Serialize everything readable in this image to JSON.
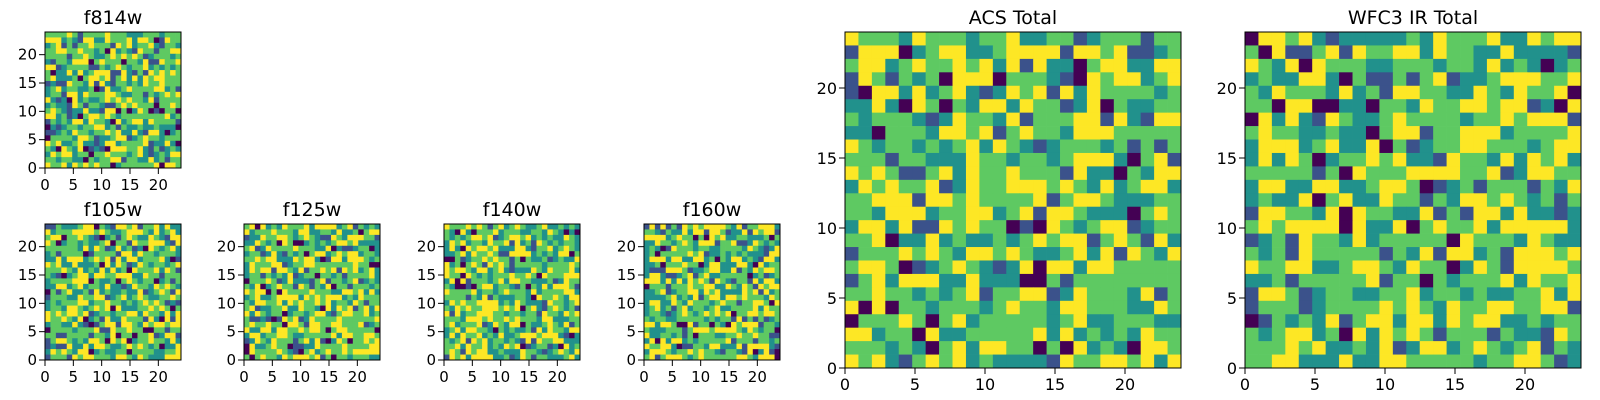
{
  "figure": {
    "colors": [
      "#440154",
      "#3b528b",
      "#21918c",
      "#5ec962",
      "#fde725"
    ]
  },
  "chart_data": [
    {
      "id": "f814w",
      "type": "heatmap",
      "title": "f814w",
      "grid_size": 25,
      "xlim": [
        0,
        24
      ],
      "ylim": [
        0,
        24
      ],
      "x_ticks": [
        "0",
        "5",
        "10",
        "15",
        "20"
      ],
      "y_ticks": [
        "0",
        "5",
        "10",
        "15",
        "20"
      ],
      "colormap": "viridis",
      "data_seed": 11
    },
    {
      "id": "f105w",
      "type": "heatmap",
      "title": "f105w",
      "grid_size": 25,
      "xlim": [
        0,
        24
      ],
      "ylim": [
        0,
        24
      ],
      "x_ticks": [
        "0",
        "5",
        "10",
        "15",
        "20"
      ],
      "y_ticks": [
        "0",
        "5",
        "10",
        "15",
        "20"
      ],
      "colormap": "viridis",
      "data_seed": 23
    },
    {
      "id": "f125w",
      "type": "heatmap",
      "title": "f125w",
      "grid_size": 25,
      "xlim": [
        0,
        24
      ],
      "ylim": [
        0,
        24
      ],
      "x_ticks": [
        "0",
        "5",
        "10",
        "15",
        "20"
      ],
      "y_ticks": [
        "0",
        "5",
        "10",
        "15",
        "20"
      ],
      "colormap": "viridis",
      "data_seed": 37
    },
    {
      "id": "f140w",
      "type": "heatmap",
      "title": "f140w",
      "grid_size": 25,
      "xlim": [
        0,
        24
      ],
      "ylim": [
        0,
        24
      ],
      "x_ticks": [
        "0",
        "5",
        "10",
        "15",
        "20"
      ],
      "y_ticks": [
        "0",
        "5",
        "10",
        "15",
        "20"
      ],
      "colormap": "viridis",
      "data_seed": 41
    },
    {
      "id": "f160w",
      "type": "heatmap",
      "title": "f160w",
      "grid_size": 25,
      "xlim": [
        0,
        24
      ],
      "ylim": [
        0,
        24
      ],
      "x_ticks": [
        "0",
        "5",
        "10",
        "15",
        "20"
      ],
      "y_ticks": [
        "0",
        "5",
        "10",
        "15",
        "20"
      ],
      "colormap": "viridis",
      "data_seed": 53
    },
    {
      "id": "acs-total",
      "type": "heatmap",
      "title": "ACS Total",
      "grid_size": 25,
      "xlim": [
        0,
        24
      ],
      "ylim": [
        0,
        24
      ],
      "x_ticks": [
        "0",
        "5",
        "10",
        "15",
        "20"
      ],
      "y_ticks": [
        "0",
        "5",
        "10",
        "15",
        "20"
      ],
      "colormap": "viridis",
      "data_seed": 67
    },
    {
      "id": "wfc3-ir-total",
      "type": "heatmap",
      "title": "WFC3 IR Total",
      "grid_size": 25,
      "xlim": [
        0,
        24
      ],
      "ylim": [
        0,
        24
      ],
      "x_ticks": [
        "0",
        "5",
        "10",
        "15",
        "20"
      ],
      "y_ticks": [
        "0",
        "5",
        "10",
        "15",
        "20"
      ],
      "colormap": "viridis",
      "data_seed": 79
    }
  ]
}
